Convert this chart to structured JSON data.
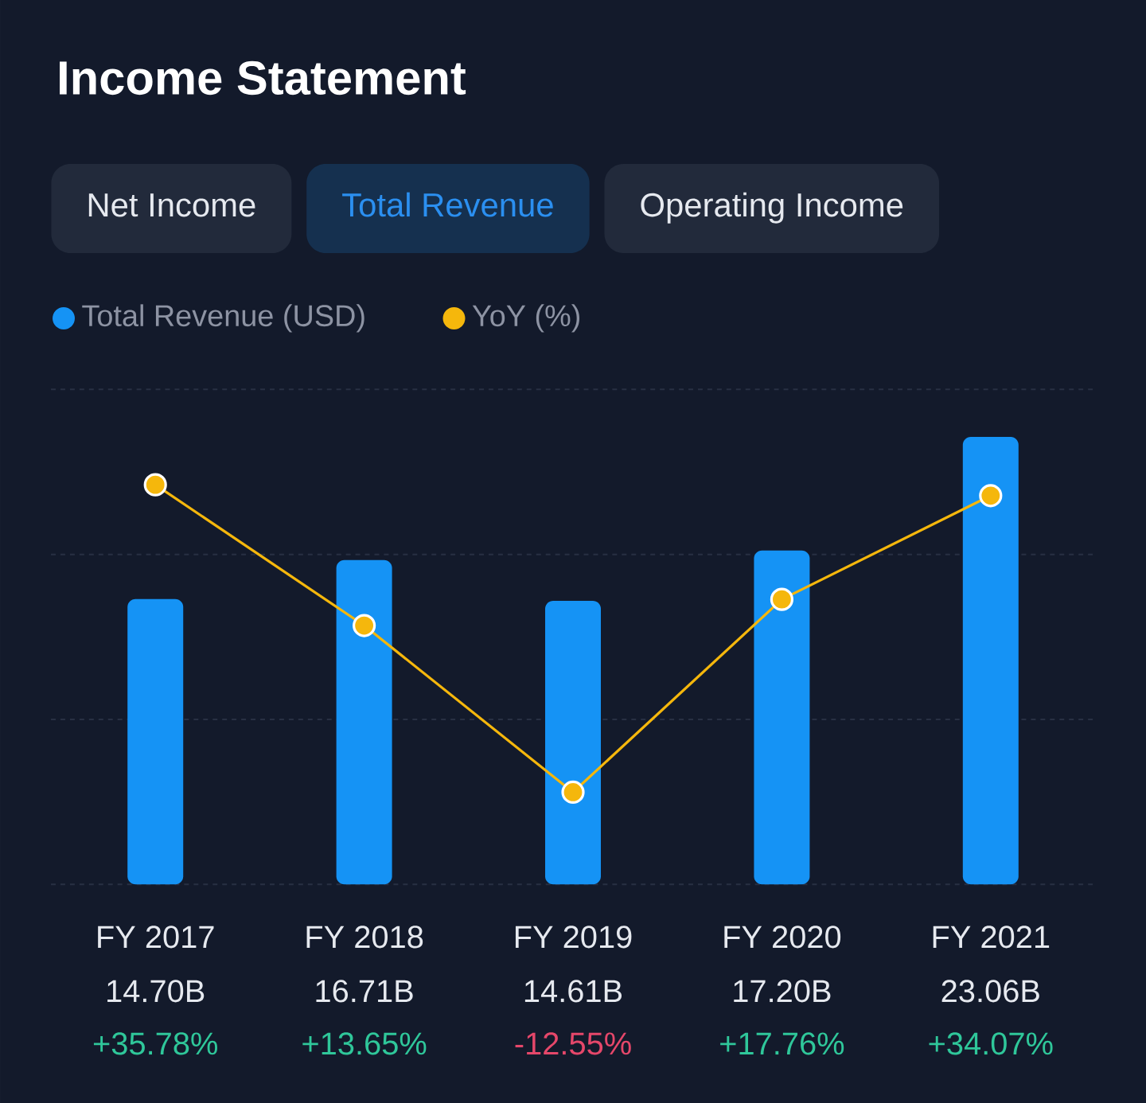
{
  "chart_data": {
    "type": "bar",
    "title": "Income Statement",
    "annotations": [
      "Net Income",
      "Total Revenue",
      "Operating Income"
    ],
    "categories": [
      "FY 2017",
      "FY 2018",
      "FY 2019",
      "FY 2020",
      "FY 2021"
    ],
    "series": [
      {
        "name": "Total Revenue  (USD)",
        "color": "#1593f5",
        "values": [
          14.7,
          16.71,
          14.61,
          17.2,
          23.06
        ],
        "value_labels": [
          "14.70B",
          "16.71B",
          "14.61B",
          "17.20B",
          "23.06B"
        ]
      },
      {
        "name": "YoY (%)",
        "type": "line",
        "axis": "y2",
        "color": "#f5b70c",
        "values": [
          35.78,
          13.65,
          -12.55,
          17.76,
          34.07
        ],
        "value_labels": [
          "+35.78%",
          "+13.65%",
          "-12.55%",
          "+17.76%",
          "+34.07%"
        ]
      }
    ],
    "ylim": [
      0,
      25.5
    ],
    "yticks": [
      {
        "value": 0,
        "label": null
      },
      {
        "value": 8.5,
        "label": null
      },
      {
        "value": 17,
        "label": null
      },
      {
        "value": 25.5,
        "label": null
      }
    ],
    "grid": "y",
    "legend": "top left",
    "marker": "circle",
    "tick_labels": "x"
  }
}
